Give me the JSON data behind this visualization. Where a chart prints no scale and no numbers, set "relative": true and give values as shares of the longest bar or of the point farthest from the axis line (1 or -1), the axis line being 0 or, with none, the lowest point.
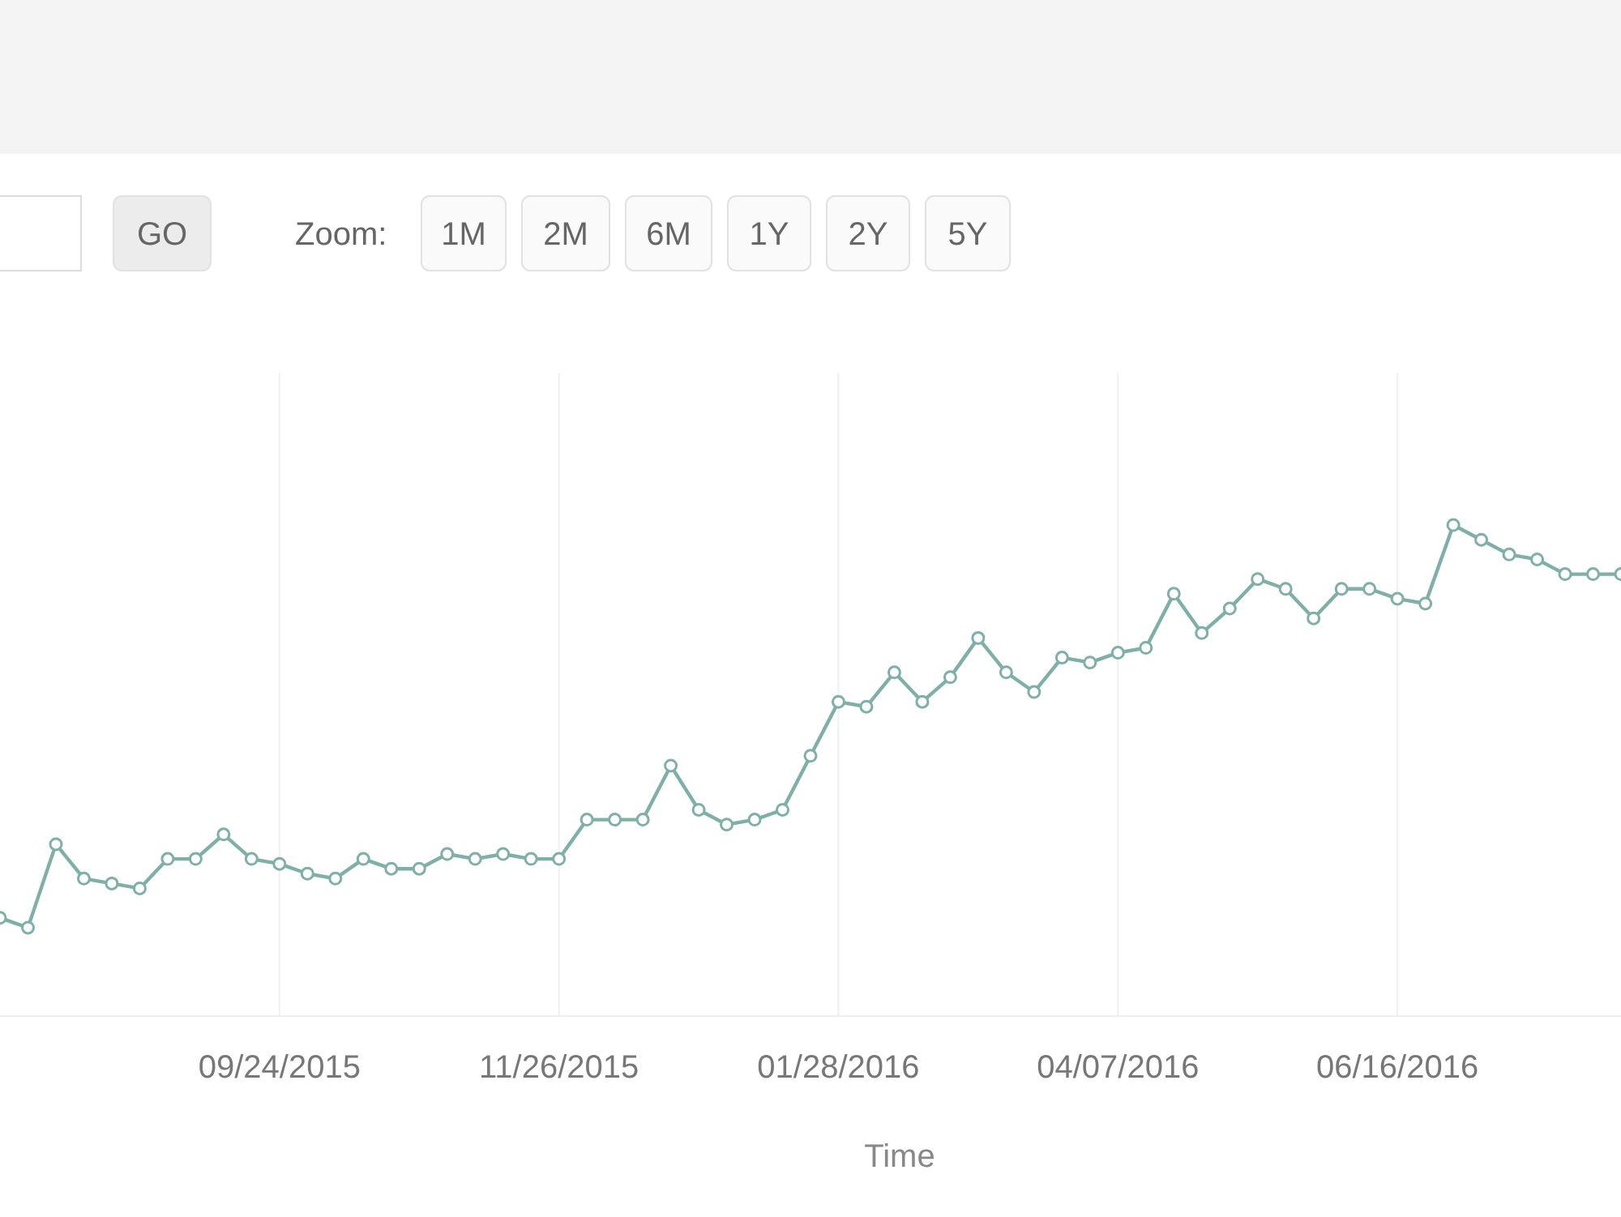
{
  "chart_data": {
    "type": "line",
    "relative": true,
    "xlabel": "Time",
    "grid": "x",
    "marker": "circle",
    "line_style": "solid",
    "annotations": [
      "GO",
      "Zoom:",
      "1M",
      "2M",
      "6M",
      "1Y",
      "2Y",
      "5Y"
    ],
    "categories": [
      null,
      null,
      null,
      null,
      null,
      null,
      null,
      null,
      null,
      null,
      "09/24/2015",
      null,
      null,
      null,
      null,
      null,
      null,
      null,
      null,
      null,
      "11/26/2015",
      null,
      null,
      null,
      null,
      null,
      null,
      null,
      null,
      null,
      "01/28/2016",
      null,
      null,
      null,
      null,
      null,
      null,
      null,
      null,
      null,
      "04/07/2016",
      null,
      null,
      null,
      null,
      null,
      null,
      null,
      null,
      null,
      "06/16/2016",
      null,
      null,
      null,
      null,
      null,
      null,
      null,
      null
    ],
    "series": [
      {
        "color": "#7fb0a8",
        "values": [
          0.2,
          0.18,
          0.35,
          0.28,
          0.27,
          0.26,
          0.32,
          0.32,
          0.37,
          0.32,
          0.31,
          0.29,
          0.28,
          0.32,
          0.3,
          0.3,
          0.33,
          0.32,
          0.33,
          0.32,
          0.32,
          0.4,
          0.4,
          0.4,
          0.51,
          0.42,
          0.39,
          0.4,
          0.42,
          0.53,
          0.64,
          0.63,
          0.7,
          0.64,
          0.69,
          0.77,
          0.7,
          0.66,
          0.73,
          0.72,
          0.74,
          0.75,
          0.86,
          0.78,
          0.83,
          0.89,
          0.87,
          0.81,
          0.87,
          0.87,
          0.85,
          0.84,
          1,
          0.97,
          0.94,
          0.93,
          0.9,
          0.9,
          0.9
        ]
      }
    ]
  }
}
